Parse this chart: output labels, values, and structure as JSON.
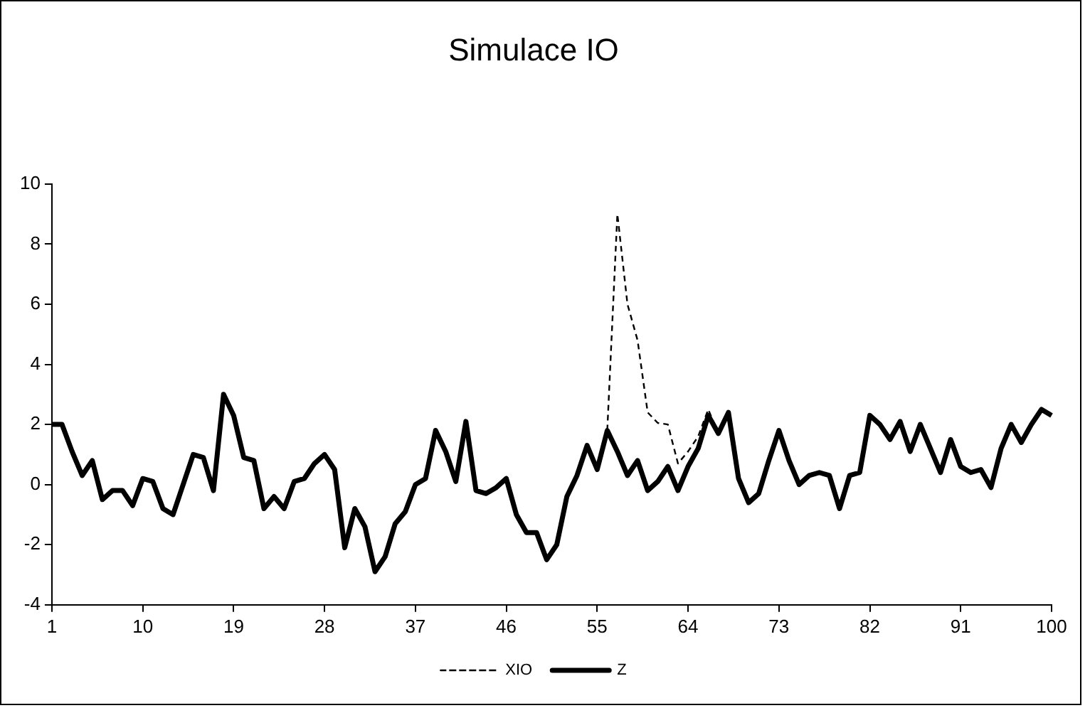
{
  "chart_data": {
    "type": "line",
    "title": "Simulace IO",
    "categories": [
      "1",
      null,
      null,
      null,
      null,
      null,
      null,
      null,
      null,
      "10",
      null,
      null,
      null,
      null,
      null,
      null,
      null,
      null,
      "19",
      null,
      null,
      null,
      null,
      null,
      null,
      null,
      null,
      "28",
      null,
      null,
      null,
      null,
      null,
      null,
      null,
      null,
      "37",
      null,
      null,
      null,
      null,
      null,
      null,
      null,
      null,
      "46",
      null,
      null,
      null,
      null,
      null,
      null,
      null,
      null,
      "55",
      null,
      null,
      null,
      null,
      null,
      null,
      null,
      null,
      "64",
      null,
      null,
      null,
      null,
      null,
      null,
      null,
      null,
      "73",
      null,
      null,
      null,
      null,
      null,
      null,
      null,
      null,
      "82",
      null,
      null,
      null,
      null,
      null,
      null,
      null,
      null,
      "91",
      null,
      null,
      null,
      null,
      null,
      null,
      null,
      null,
      "100"
    ],
    "series": [
      {
        "name": "Z",
        "color": "#000000",
        "line_style": "solid",
        "values": [
          2.0,
          2.0,
          1.1,
          0.3,
          0.8,
          -0.5,
          -0.2,
          -0.2,
          -0.7,
          0.2,
          0.1,
          -0.8,
          -1.0,
          0.0,
          1.0,
          0.9,
          -0.2,
          3.0,
          2.3,
          0.9,
          0.8,
          -0.8,
          -0.4,
          -0.8,
          0.1,
          0.2,
          0.7,
          1.0,
          0.5,
          -2.1,
          -0.8,
          -1.4,
          -2.9,
          -2.4,
          -1.3,
          -0.9,
          0.0,
          0.2,
          1.8,
          1.1,
          0.1,
          2.1,
          -0.2,
          -0.3,
          -0.1,
          0.2,
          -1.0,
          -1.6,
          -1.6,
          -2.5,
          -2.0,
          -0.4,
          0.3,
          1.3,
          0.5,
          1.8,
          1.1,
          0.3,
          0.8,
          -0.2,
          0.1,
          0.6,
          -0.2,
          0.6,
          1.2,
          2.3,
          1.7,
          2.4,
          0.2,
          -0.6,
          -0.3,
          0.8,
          1.8,
          0.8,
          0.0,
          0.3,
          0.4,
          0.3,
          -0.8,
          0.3,
          0.4,
          2.3,
          2.0,
          1.5,
          2.1,
          1.1,
          2.0,
          1.2,
          0.4,
          1.5,
          0.6,
          0.4,
          0.5,
          -0.1,
          1.2,
          2.0,
          1.4,
          2.0,
          2.5,
          2.3
        ]
      },
      {
        "name": "XIO",
        "color": "#000000",
        "line_style": "dashed",
        "values": [
          null,
          null,
          null,
          null,
          null,
          null,
          null,
          null,
          null,
          null,
          null,
          null,
          null,
          null,
          null,
          null,
          null,
          null,
          null,
          null,
          null,
          null,
          null,
          null,
          null,
          null,
          null,
          null,
          null,
          null,
          null,
          null,
          null,
          null,
          null,
          null,
          null,
          null,
          null,
          null,
          null,
          null,
          null,
          null,
          null,
          null,
          null,
          null,
          null,
          null,
          null,
          null,
          null,
          null,
          null,
          1.8,
          9.0,
          6.0,
          4.8,
          2.4,
          2.05,
          2.0,
          0.7,
          1.1,
          1.6,
          2.5,
          1.7,
          null,
          null,
          null,
          null,
          null,
          null,
          null,
          null,
          null,
          null,
          null,
          null,
          null,
          null,
          null,
          null,
          null,
          null,
          null,
          null,
          null,
          null,
          null,
          null,
          null,
          null,
          null,
          null,
          null,
          null,
          null,
          null,
          null
        ]
      }
    ],
    "ylim": [
      -4,
      10
    ],
    "yticks": [
      -4,
      -2,
      0,
      2,
      4,
      6,
      8,
      10
    ],
    "legend": "bottom",
    "marker": "none"
  }
}
